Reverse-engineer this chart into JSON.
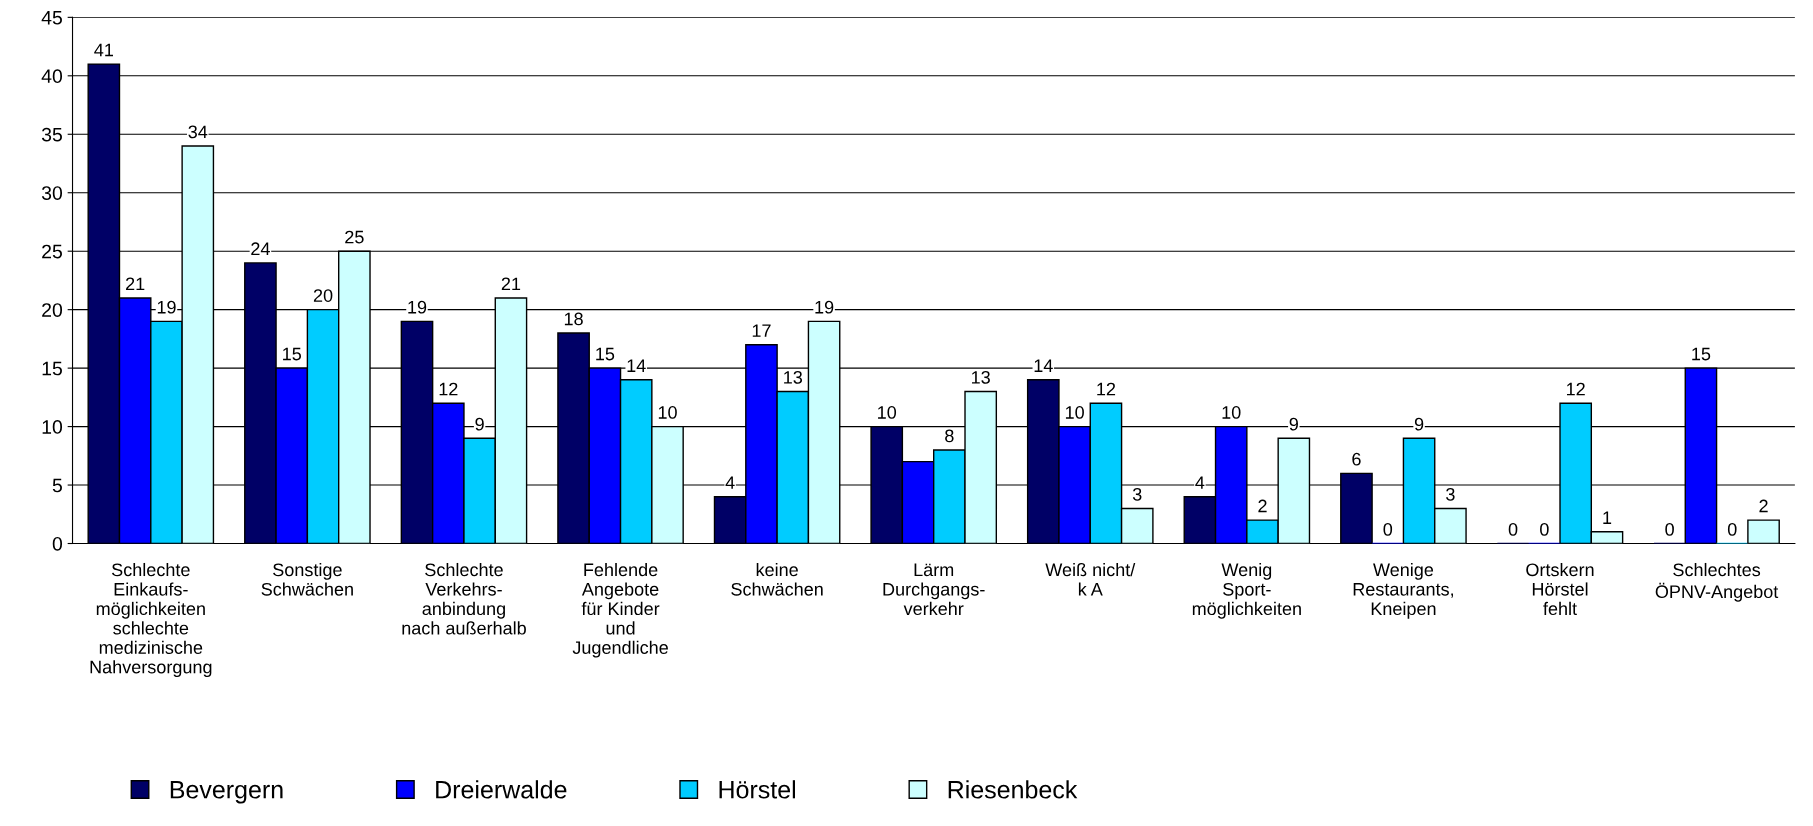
{
  "chart_data": {
    "type": "bar",
    "categories": [
      "Schlechte\nEinkaufs-\nmöglichkeiten\nschlechte\nmedizinische\nNahversorgung",
      "Sonstige\nSchwächen",
      "Schlechte\nVerkehrs-\nanbindung\nnach außerhalb",
      "Fehlende\nAngebote\nfür Kinder\nund\nJugendliche",
      "keine\nSchwächen",
      "Lärm\nDurchgangs-\nverkehr",
      "Weiß nicht/\nk A",
      "Wenig\nSport-\nmöglichkeiten",
      "Wenige\nRestaurants,\nKneipen",
      "Ortskern\nHörstel\nfehlt",
      "Schlechtes\nÖPNV-Angebot"
    ],
    "series": [
      {
        "name": "Bevergern",
        "color": "#000066",
        "values": [
          41,
          24,
          19,
          18,
          4,
          10,
          14,
          4,
          6,
          0,
          0
        ],
        "value_labels": [
          "41",
          "24",
          "19",
          "18",
          "4",
          "10",
          "14",
          "4",
          "6",
          "0",
          "0"
        ]
      },
      {
        "name": "Dreierwalde",
        "color": "#0000ff",
        "values": [
          21,
          15,
          12,
          15,
          17,
          7,
          10,
          10,
          0,
          0,
          15
        ],
        "value_labels": [
          "21",
          "15",
          "12",
          "15",
          "17",
          null,
          "10",
          "10",
          "0",
          "0",
          "15"
        ]
      },
      {
        "name": "Hörstel",
        "color": "#00ccff",
        "values": [
          19,
          20,
          9,
          14,
          13,
          8,
          12,
          2,
          9,
          12,
          0
        ],
        "value_labels": [
          "19",
          "20",
          "9",
          "14",
          "13",
          "8",
          "12",
          "2",
          "9",
          "12",
          "0"
        ]
      },
      {
        "name": "Riesenbeck",
        "color": "#ccffff",
        "values": [
          34,
          25,
          21,
          10,
          19,
          13,
          3,
          9,
          3,
          1,
          2
        ],
        "value_labels": [
          "34",
          "25",
          "21",
          "10",
          "19",
          "13",
          "3",
          "9",
          "3",
          "1",
          "2"
        ]
      }
    ],
    "ylim": [
      0,
      45
    ],
    "yticks": [
      0,
      5,
      10,
      15,
      20,
      25,
      30,
      35,
      40,
      45
    ],
    "grid": "y",
    "legend": "bottom left"
  }
}
